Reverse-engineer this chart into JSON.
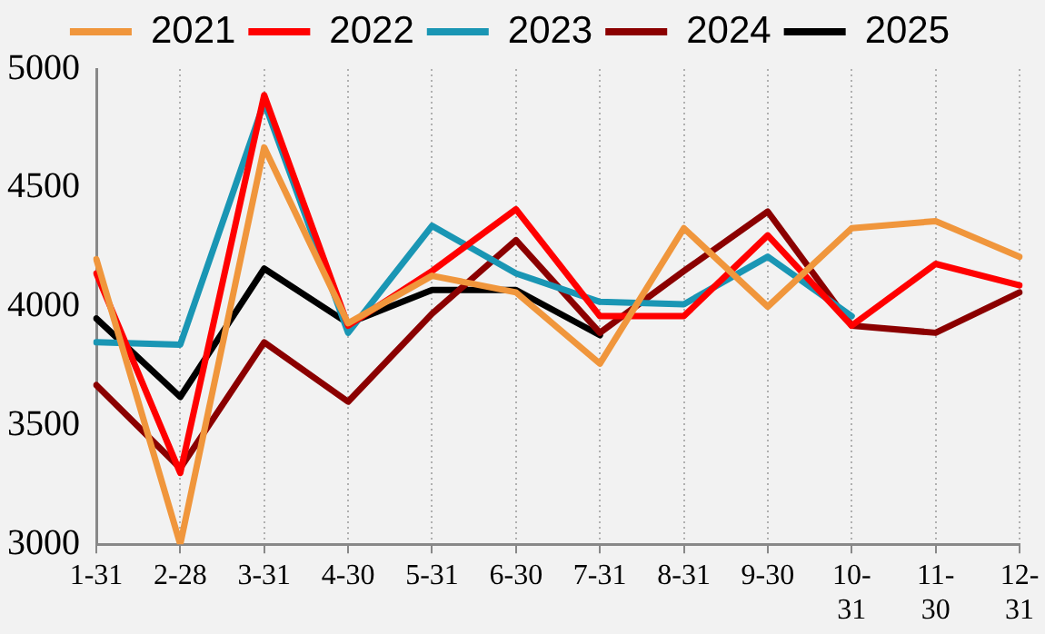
{
  "chart_data": {
    "type": "line",
    "categories": [
      "1-31",
      "2-28",
      "3-31",
      "4-30",
      "5-31",
      "6-30",
      "7-31",
      "8-31",
      "9-30",
      "10-31",
      "11-30",
      "12-31"
    ],
    "series": [
      {
        "name": "2021",
        "color": "#f0963c",
        "values": [
          4200,
          3000,
          4670,
          3930,
          4130,
          4060,
          3760,
          4330,
          4000,
          4330,
          4360,
          4210
        ]
      },
      {
        "name": "2022",
        "color": "#ff0000",
        "values": [
          4140,
          3300,
          4890,
          3920,
          4150,
          4410,
          3960,
          3960,
          4300,
          3920,
          4180,
          4090
        ]
      },
      {
        "name": "2023",
        "color": "#1a96b4",
        "values": [
          3850,
          3840,
          4860,
          3890,
          4340,
          4140,
          4020,
          4010,
          4210,
          3960,
          null,
          null
        ]
      },
      {
        "name": "2024",
        "color": "#8b0000",
        "values": [
          3670,
          3320,
          3850,
          3600,
          3970,
          4280,
          3890,
          4150,
          4400,
          3920,
          3890,
          4060
        ]
      },
      {
        "name": "2025",
        "color": "#000000",
        "values": [
          3950,
          3620,
          4160,
          3930,
          4070,
          4070,
          3880,
          null,
          null,
          null,
          null,
          null
        ]
      }
    ],
    "ylim": [
      3000,
      5000
    ],
    "yticks": [
      3000,
      3500,
      4000,
      4500,
      5000
    ],
    "grid": "x",
    "legend": "top",
    "marker": "none",
    "line_style": "solid"
  }
}
